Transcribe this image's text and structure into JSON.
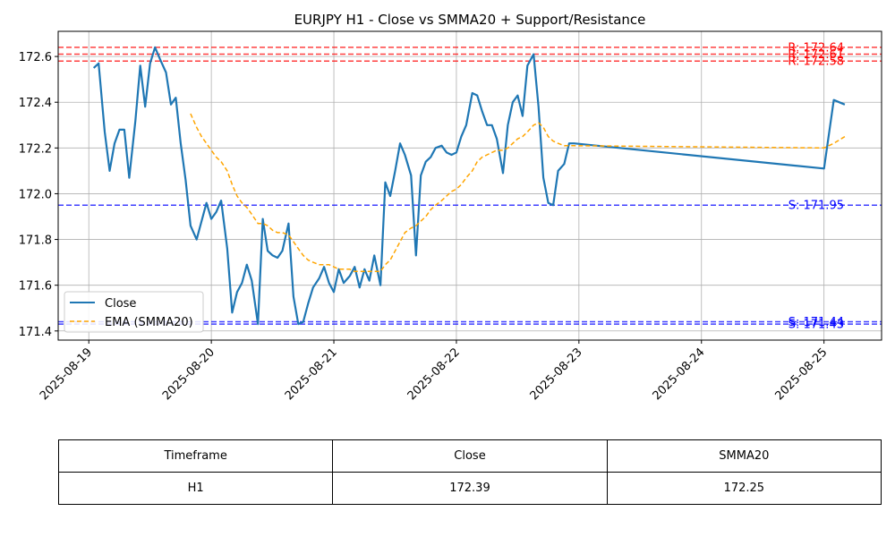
{
  "chart_data": {
    "type": "line",
    "title": "EURJPY H1 - Close vs SMMA20 + Support/Resistance",
    "x_ticks": [
      "2025-08-19",
      "2025-08-20",
      "2025-08-21",
      "2025-08-22",
      "2025-08-23",
      "2025-08-24",
      "2025-08-25"
    ],
    "y_ticks": [
      "171.4",
      "171.6",
      "171.8",
      "172.0",
      "172.2",
      "172.4",
      "172.6"
    ],
    "ylim": [
      171.36,
      172.71
    ],
    "xlim_days": [
      -0.25,
      6.47
    ],
    "grid": true,
    "legend_position": "lower-left",
    "series": [
      {
        "name": "Close",
        "color": "#1f77b4",
        "style": "solid",
        "points": [
          [
            0.04,
            172.55
          ],
          [
            0.08,
            172.57
          ],
          [
            0.13,
            172.27
          ],
          [
            0.17,
            172.1
          ],
          [
            0.21,
            172.22
          ],
          [
            0.25,
            172.28
          ],
          [
            0.29,
            172.28
          ],
          [
            0.33,
            172.07
          ],
          [
            0.38,
            172.32
          ],
          [
            0.42,
            172.56
          ],
          [
            0.46,
            172.38
          ],
          [
            0.5,
            172.57
          ],
          [
            0.54,
            172.64
          ],
          [
            0.58,
            172.59
          ],
          [
            0.63,
            172.53
          ],
          [
            0.67,
            172.39
          ],
          [
            0.71,
            172.42
          ],
          [
            0.75,
            172.22
          ],
          [
            0.79,
            172.06
          ],
          [
            0.83,
            171.86
          ],
          [
            0.88,
            171.8
          ],
          [
            0.92,
            171.88
          ],
          [
            0.96,
            171.96
          ],
          [
            1.0,
            171.89
          ],
          [
            1.04,
            171.92
          ],
          [
            1.08,
            171.97
          ],
          [
            1.13,
            171.76
          ],
          [
            1.17,
            171.48
          ],
          [
            1.21,
            171.57
          ],
          [
            1.25,
            171.61
          ],
          [
            1.29,
            171.69
          ],
          [
            1.33,
            171.62
          ],
          [
            1.38,
            171.43
          ],
          [
            1.42,
            171.89
          ],
          [
            1.46,
            171.75
          ],
          [
            1.5,
            171.73
          ],
          [
            1.54,
            171.72
          ],
          [
            1.58,
            171.75
          ],
          [
            1.63,
            171.87
          ],
          [
            1.67,
            171.55
          ],
          [
            1.71,
            171.43
          ],
          [
            1.75,
            171.44
          ],
          [
            1.79,
            171.52
          ],
          [
            1.83,
            171.59
          ],
          [
            1.88,
            171.63
          ],
          [
            1.92,
            171.68
          ],
          [
            1.96,
            171.61
          ],
          [
            2.0,
            171.57
          ],
          [
            2.04,
            171.67
          ],
          [
            2.08,
            171.61
          ],
          [
            2.13,
            171.64
          ],
          [
            2.17,
            171.68
          ],
          [
            2.21,
            171.59
          ],
          [
            2.25,
            171.67
          ],
          [
            2.29,
            171.62
          ],
          [
            2.33,
            171.73
          ],
          [
            2.38,
            171.6
          ],
          [
            2.42,
            172.05
          ],
          [
            2.46,
            171.99
          ],
          [
            2.5,
            172.1
          ],
          [
            2.54,
            172.22
          ],
          [
            2.58,
            172.17
          ],
          [
            2.63,
            172.08
          ],
          [
            2.67,
            171.73
          ],
          [
            2.71,
            172.08
          ],
          [
            2.75,
            172.14
          ],
          [
            2.79,
            172.16
          ],
          [
            2.83,
            172.2
          ],
          [
            2.88,
            172.21
          ],
          [
            2.92,
            172.18
          ],
          [
            2.96,
            172.17
          ],
          [
            3.0,
            172.18
          ],
          [
            3.04,
            172.25
          ],
          [
            3.08,
            172.3
          ],
          [
            3.13,
            172.44
          ],
          [
            3.17,
            172.43
          ],
          [
            3.21,
            172.36
          ],
          [
            3.25,
            172.3
          ],
          [
            3.29,
            172.3
          ],
          [
            3.33,
            172.24
          ],
          [
            3.38,
            172.09
          ],
          [
            3.42,
            172.3
          ],
          [
            3.46,
            172.4
          ],
          [
            3.5,
            172.43
          ],
          [
            3.54,
            172.34
          ],
          [
            3.58,
            172.56
          ],
          [
            3.63,
            172.61
          ],
          [
            3.67,
            172.38
          ],
          [
            3.71,
            172.07
          ],
          [
            3.75,
            171.96
          ],
          [
            3.79,
            171.95
          ],
          [
            3.83,
            172.1
          ],
          [
            3.88,
            172.13
          ],
          [
            3.92,
            172.22
          ],
          [
            3.96,
            172.22
          ],
          [
            6.0,
            172.11
          ],
          [
            6.08,
            172.41
          ],
          [
            6.17,
            172.39
          ]
        ]
      },
      {
        "name": "EMA (SMMA20)",
        "color": "#ffa500",
        "style": "dashed",
        "points": [
          [
            0.83,
            172.35
          ],
          [
            0.88,
            172.29
          ],
          [
            0.92,
            172.25
          ],
          [
            0.96,
            172.22
          ],
          [
            1.0,
            172.19
          ],
          [
            1.04,
            172.16
          ],
          [
            1.08,
            172.14
          ],
          [
            1.13,
            172.1
          ],
          [
            1.17,
            172.04
          ],
          [
            1.21,
            171.99
          ],
          [
            1.25,
            171.96
          ],
          [
            1.29,
            171.94
          ],
          [
            1.33,
            171.91
          ],
          [
            1.38,
            171.87
          ],
          [
            1.42,
            171.87
          ],
          [
            1.46,
            171.86
          ],
          [
            1.5,
            171.84
          ],
          [
            1.54,
            171.83
          ],
          [
            1.58,
            171.83
          ],
          [
            1.63,
            171.82
          ],
          [
            1.67,
            171.79
          ],
          [
            1.71,
            171.76
          ],
          [
            1.75,
            171.73
          ],
          [
            1.79,
            171.71
          ],
          [
            1.83,
            171.7
          ],
          [
            1.88,
            171.69
          ],
          [
            1.92,
            171.69
          ],
          [
            1.96,
            171.69
          ],
          [
            2.0,
            171.68
          ],
          [
            2.04,
            171.67
          ],
          [
            2.08,
            171.67
          ],
          [
            2.13,
            171.67
          ],
          [
            2.17,
            171.66
          ],
          [
            2.21,
            171.66
          ],
          [
            2.25,
            171.66
          ],
          [
            2.29,
            171.66
          ],
          [
            2.33,
            171.66
          ],
          [
            2.38,
            171.66
          ],
          [
            2.42,
            171.69
          ],
          [
            2.46,
            171.71
          ],
          [
            2.5,
            171.75
          ],
          [
            2.54,
            171.79
          ],
          [
            2.58,
            171.83
          ],
          [
            2.63,
            171.85
          ],
          [
            2.67,
            171.86
          ],
          [
            2.71,
            171.88
          ],
          [
            2.75,
            171.9
          ],
          [
            2.79,
            171.93
          ],
          [
            2.83,
            171.95
          ],
          [
            2.88,
            171.97
          ],
          [
            2.92,
            171.99
          ],
          [
            2.96,
            172.01
          ],
          [
            3.0,
            172.02
          ],
          [
            3.04,
            172.04
          ],
          [
            3.08,
            172.07
          ],
          [
            3.13,
            172.1
          ],
          [
            3.17,
            172.14
          ],
          [
            3.21,
            172.16
          ],
          [
            3.25,
            172.17
          ],
          [
            3.29,
            172.18
          ],
          [
            3.33,
            172.19
          ],
          [
            3.38,
            172.19
          ],
          [
            3.42,
            172.2
          ],
          [
            3.46,
            172.22
          ],
          [
            3.5,
            172.24
          ],
          [
            3.54,
            172.25
          ],
          [
            3.58,
            172.27
          ],
          [
            3.63,
            172.3
          ],
          [
            3.67,
            172.31
          ],
          [
            3.71,
            172.29
          ],
          [
            3.75,
            172.25
          ],
          [
            3.79,
            172.23
          ],
          [
            3.83,
            172.22
          ],
          [
            3.88,
            172.21
          ],
          [
            3.92,
            172.21
          ],
          [
            3.96,
            172.21
          ],
          [
            6.0,
            172.2
          ],
          [
            6.08,
            172.22
          ],
          [
            6.17,
            172.25
          ]
        ]
      }
    ],
    "levels": [
      {
        "kind": "resistance",
        "value": 172.64,
        "label": "R: 172.64",
        "color": "#ff0000"
      },
      {
        "kind": "resistance",
        "value": 172.61,
        "label": "R: 172.61",
        "color": "#ff0000"
      },
      {
        "kind": "resistance",
        "value": 172.58,
        "label": "R: 172.58",
        "color": "#ff0000"
      },
      {
        "kind": "support",
        "value": 171.95,
        "label": "S: 171.95",
        "color": "#0000ff"
      },
      {
        "kind": "support",
        "value": 171.44,
        "label": "S: 171.44",
        "color": "#0000ff"
      },
      {
        "kind": "support",
        "value": 171.43,
        "label": "S: 171.43",
        "color": "#0000ff"
      }
    ]
  },
  "table": {
    "headers": [
      "Timeframe",
      "Close",
      "SMMA20"
    ],
    "row": [
      "H1",
      "172.39",
      "172.25"
    ]
  }
}
